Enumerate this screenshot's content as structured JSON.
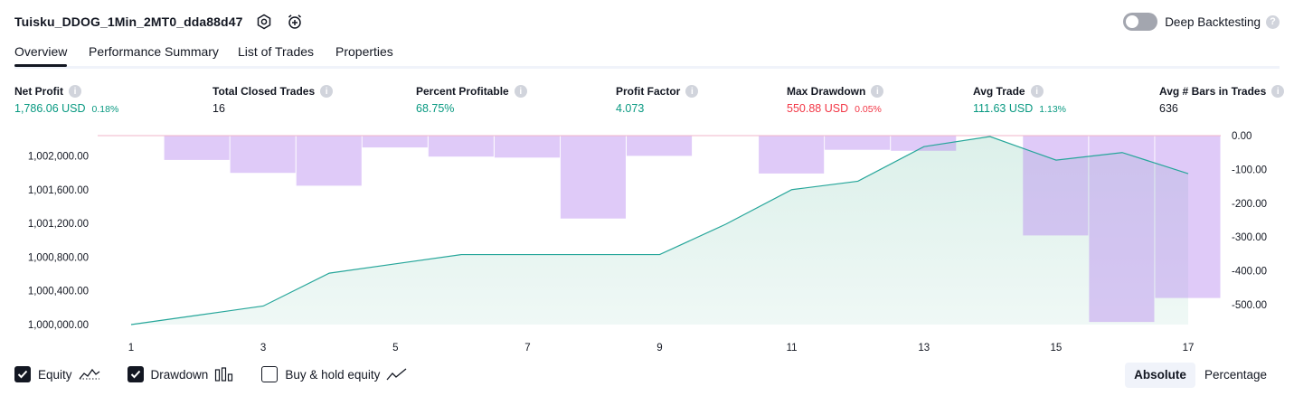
{
  "header": {
    "strategy_title": "Tuisku_DDOG_1Min_2MT0_dda88d47",
    "deep_backtesting_label": "Deep Backtesting",
    "deep_backtesting_on": false,
    "help_glyph": "?"
  },
  "tabs": [
    {
      "label": "Overview",
      "active": true
    },
    {
      "label": "Performance Summary",
      "active": false
    },
    {
      "label": "List of Trades",
      "active": false
    },
    {
      "label": "Properties",
      "active": false
    }
  ],
  "metrics": [
    {
      "label": "Net Profit",
      "value": "1,786.06 USD",
      "sub": "0.18%",
      "tone": "pos",
      "info_glyph": "i"
    },
    {
      "label": "Total Closed Trades",
      "value": "16",
      "sub": "",
      "tone": "neutral",
      "info_glyph": "i"
    },
    {
      "label": "Percent Profitable",
      "value": "68.75%",
      "sub": "",
      "tone": "pos",
      "info_glyph": "i"
    },
    {
      "label": "Profit Factor",
      "value": "4.073",
      "sub": "",
      "tone": "pos",
      "info_glyph": "i"
    },
    {
      "label": "Max Drawdown",
      "value": "550.88 USD",
      "sub": "0.05%",
      "tone": "neg",
      "info_glyph": "i"
    },
    {
      "label": "Avg Trade",
      "value": "111.63 USD",
      "sub": "1.13%",
      "tone": "pos",
      "info_glyph": "i"
    },
    {
      "label": "Avg # Bars in Trades",
      "value": "636",
      "sub": "",
      "tone": "neutral",
      "info_glyph": "i"
    }
  ],
  "chart_data": {
    "type": "line",
    "x": [
      1,
      2,
      3,
      4,
      5,
      6,
      7,
      8,
      9,
      10,
      11,
      12,
      13,
      14,
      15,
      16,
      17
    ],
    "x_tick_labels": [
      "1",
      "3",
      "5",
      "7",
      "9",
      "11",
      "13",
      "15",
      "17"
    ],
    "left_axis": {
      "ticks": [
        "1,000,000.00",
        "1,000,400.00",
        "1,000,800.00",
        "1,001,200.00",
        "1,001,600.00",
        "1,002,000.00"
      ],
      "ylim": [
        1000000,
        1002230
      ]
    },
    "right_axis": {
      "ticks": [
        "0.00",
        "-100.00",
        "-200.00",
        "-300.00",
        "-400.00",
        "-500.00"
      ],
      "ylim": [
        -560,
        0
      ]
    },
    "series": [
      {
        "kind": "equity",
        "axis": "left",
        "values": [
          1000000,
          1000110,
          1000220,
          1000610,
          1000720,
          1000830,
          1000830,
          1000830,
          1000830,
          1001190,
          1001600,
          1001700,
          1002110,
          1002230,
          1001950,
          1002040,
          1001790
        ]
      },
      {
        "kind": "drawdown",
        "axis": "right",
        "values": [
          0,
          -72,
          -110,
          -148,
          -35,
          -62,
          -65,
          -245,
          -60,
          0,
          -112,
          -42,
          -45,
          0,
          -295,
          -551,
          -480
        ]
      }
    ],
    "colors": {
      "equity_line": "#26a69a",
      "equity_fill": "#dcf0ea",
      "drawdown_bar": "#e1c4fa",
      "drawdown_bar_overlap": "#b5b4ea",
      "baseline": "#f0b4c8"
    }
  },
  "legend": {
    "items": [
      {
        "label": "Equity",
        "checked": true,
        "icon": "equity-line-icon"
      },
      {
        "label": "Drawdown",
        "checked": true,
        "icon": "drawdown-bars-icon"
      },
      {
        "label": "Buy & hold equity",
        "checked": false,
        "icon": "buy-hold-line-icon"
      }
    ]
  },
  "mode_switch": {
    "options": [
      {
        "label": "Absolute",
        "active": true
      },
      {
        "label": "Percentage",
        "active": false
      }
    ]
  }
}
